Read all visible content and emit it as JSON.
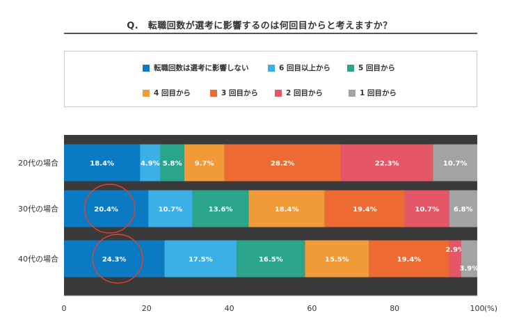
{
  "title": "Q.　転職回数が選考に影響するのは何回目からと考えますか？",
  "colors": {
    "s0": "#0a7bc2",
    "s1": "#3bb0e6",
    "s2": "#2aa58c",
    "s3": "#f19a38",
    "s4": "#ee6a33",
    "s5": "#e55766",
    "s6": "#a3a3a3",
    "highlight": "#e0402e"
  },
  "chart_data": {
    "type": "bar",
    "orientation": "horizontal-stacked-100",
    "title": "Q.　転職回数が選考に影響するのは何回目からと考えますか？",
    "categories": [
      "20代の場合",
      "30代の場合",
      "40代の場合"
    ],
    "series": [
      {
        "name": "転職回数は選考に影響しない",
        "values": [
          18.4,
          20.4,
          24.3
        ]
      },
      {
        "name": "6 回目以上から",
        "values": [
          4.9,
          10.7,
          17.5
        ]
      },
      {
        "name": "5 回目から",
        "values": [
          5.8,
          13.6,
          16.5
        ]
      },
      {
        "name": "4 回目から",
        "values": [
          9.7,
          18.4,
          15.5
        ]
      },
      {
        "name": "3 回目から",
        "values": [
          28.2,
          19.4,
          19.4
        ]
      },
      {
        "name": "2 回目から",
        "values": [
          22.3,
          10.7,
          2.9
        ]
      },
      {
        "name": "1 回目から",
        "values": [
          10.7,
          6.8,
          3.9
        ]
      }
    ],
    "xlim": [
      0,
      100
    ],
    "xticks": [
      "0",
      "20",
      "40",
      "60",
      "80",
      "100"
    ],
    "xunit": "(%)",
    "legend_position": "top",
    "highlighted": [
      {
        "category": "30代の場合",
        "series": 0
      },
      {
        "category": "40代の場合",
        "series": 0
      }
    ]
  }
}
